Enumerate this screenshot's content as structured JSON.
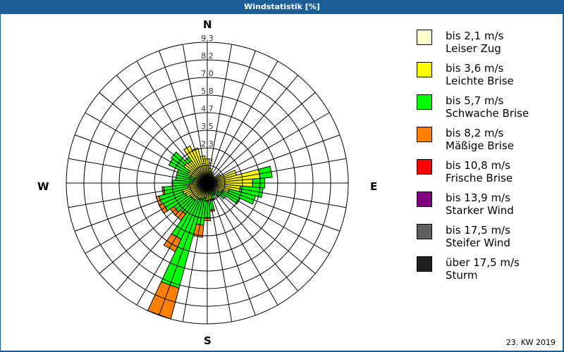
{
  "title": "Windstatistik [%]",
  "footer": "23. KW 2019",
  "directions": {
    "n": "N",
    "e": "E",
    "s": "S",
    "w": "W"
  },
  "legend": [
    {
      "range": "bis 2,1 m/s",
      "name": "Leiser Zug",
      "color": "#ffffcc"
    },
    {
      "range": "bis 3,6 m/s",
      "name": "Leichte Brise",
      "color": "#ffff00"
    },
    {
      "range": "bis 5,7 m/s",
      "name": "Schwache Brise",
      "color": "#00ff00"
    },
    {
      "range": "bis 8,2 m/s",
      "name": "Mäßige Brise",
      "color": "#ff8000"
    },
    {
      "range": "bis 10,8 m/s",
      "name": "Frische Brise",
      "color": "#ff0000"
    },
    {
      "range": "bis 13,9 m/s",
      "name": "Starker Wind",
      "color": "#800080"
    },
    {
      "range": "bis 17,5 m/s",
      "name": "Steifer Wind",
      "color": "#606060"
    },
    {
      "range": "über 17,5 m/s",
      "name": "Sturm",
      "color": "#202020"
    }
  ],
  "chart_data": {
    "type": "wind-rose",
    "title": "Windstatistik [%]",
    "unit": "%",
    "rings": [
      "1,2",
      "2,3",
      "3,5",
      "4,7",
      "5,8",
      "7,0",
      "8,2",
      "9,3"
    ],
    "max_value": 9.3,
    "sector_width_deg": 10,
    "series_names": [
      "bis 2,1 m/s",
      "bis 3,6 m/s",
      "bis 5,7 m/s",
      "bis 8,2 m/s",
      "bis 10,8 m/s",
      "bis 13,9 m/s",
      "bis 17,5 m/s",
      "über 17,5 m/s"
    ],
    "sectors": [
      {
        "dir": 0,
        "values": [
          0.3,
          1.3,
          0,
          0,
          0,
          0,
          0,
          0
        ]
      },
      {
        "dir": 10,
        "values": [
          0.3,
          0.7,
          0,
          0,
          0,
          0,
          0,
          0
        ]
      },
      {
        "dir": 20,
        "values": [
          0.2,
          0.6,
          0,
          0,
          0,
          0,
          0,
          0
        ]
      },
      {
        "dir": 30,
        "values": [
          0.2,
          0.5,
          0,
          0,
          0,
          0,
          0,
          0
        ]
      },
      {
        "dir": 40,
        "values": [
          0.2,
          0.4,
          0,
          0,
          0,
          0,
          0,
          0
        ]
      },
      {
        "dir": 50,
        "values": [
          0.2,
          0.4,
          0,
          0,
          0,
          0,
          0,
          0
        ]
      },
      {
        "dir": 60,
        "values": [
          0.3,
          0.7,
          0,
          0,
          0,
          0,
          0,
          0
        ]
      },
      {
        "dir": 70,
        "values": [
          0.4,
          1.6,
          0,
          0,
          0,
          0,
          0,
          0
        ]
      },
      {
        "dir": 80,
        "values": [
          0.6,
          2.9,
          0.8,
          0,
          0,
          0,
          0,
          0
        ]
      },
      {
        "dir": 90,
        "values": [
          0.5,
          2.5,
          0.8,
          0,
          0,
          0,
          0,
          0
        ]
      },
      {
        "dir": 100,
        "values": [
          0.4,
          1.8,
          1.5,
          0,
          0,
          0,
          0,
          0
        ]
      },
      {
        "dir": 110,
        "values": [
          0.3,
          1.2,
          1.8,
          0,
          0,
          0,
          0,
          0
        ]
      },
      {
        "dir": 120,
        "values": [
          0.3,
          0.8,
          1.3,
          0,
          0,
          0,
          0,
          0
        ]
      },
      {
        "dir": 130,
        "values": [
          0.3,
          0.6,
          0.6,
          0,
          0,
          0,
          0,
          0
        ]
      },
      {
        "dir": 140,
        "values": [
          0.2,
          0.5,
          0.4,
          0,
          0,
          0,
          0,
          0
        ]
      },
      {
        "dir": 150,
        "values": [
          0.2,
          0.4,
          0.3,
          0,
          0,
          0,
          0,
          0
        ]
      },
      {
        "dir": 160,
        "values": [
          0.2,
          0.5,
          0.4,
          0.1,
          0,
          0,
          0,
          0
        ]
      },
      {
        "dir": 170,
        "values": [
          0.2,
          0.9,
          0.7,
          0.1,
          0,
          0,
          0,
          0
        ]
      },
      {
        "dir": 180,
        "values": [
          0.2,
          1.0,
          1.1,
          0.2,
          0,
          0,
          0,
          0
        ]
      },
      {
        "dir": 190,
        "values": [
          0.2,
          0.8,
          1.8,
          0.8,
          0,
          0,
          0,
          0
        ]
      },
      {
        "dir": 200,
        "values": [
          0.2,
          0.9,
          6.1,
          2.1,
          0,
          0,
          0,
          0
        ]
      },
      {
        "dir": 210,
        "values": [
          0.2,
          1.0,
          2.9,
          0.9,
          0,
          0,
          0,
          0
        ]
      },
      {
        "dir": 220,
        "values": [
          0.2,
          1.2,
          1.1,
          0.5,
          0,
          0,
          0,
          0
        ]
      },
      {
        "dir": 230,
        "values": [
          0.2,
          1.2,
          1.3,
          0.3,
          0,
          0,
          0,
          0
        ]
      },
      {
        "dir": 240,
        "values": [
          0.2,
          1.4,
          1.6,
          0.3,
          0,
          0,
          0,
          0
        ]
      },
      {
        "dir": 250,
        "values": [
          0.2,
          1.5,
          1.6,
          0.2,
          0,
          0,
          0,
          0
        ]
      },
      {
        "dir": 260,
        "values": [
          0.2,
          1.1,
          1.6,
          0.1,
          0,
          0,
          0,
          0
        ]
      },
      {
        "dir": 270,
        "values": [
          0.2,
          0.8,
          1.3,
          0,
          0,
          0,
          0,
          0
        ]
      },
      {
        "dir": 280,
        "values": [
          0.2,
          0.7,
          1.2,
          0,
          0,
          0,
          0,
          0
        ]
      },
      {
        "dir": 290,
        "values": [
          0.2,
          0.6,
          1.3,
          0,
          0,
          0,
          0,
          0
        ]
      },
      {
        "dir": 300,
        "values": [
          0.2,
          1.2,
          1.4,
          0,
          0,
          0,
          0,
          0
        ]
      },
      {
        "dir": 310,
        "values": [
          0.2,
          1.7,
          1.0,
          0,
          0,
          0,
          0,
          0
        ]
      },
      {
        "dir": 320,
        "values": [
          0.2,
          1.6,
          0.3,
          0,
          0,
          0,
          0,
          0
        ]
      },
      {
        "dir": 330,
        "values": [
          0.2,
          2.5,
          0,
          0,
          0,
          0,
          0,
          0
        ]
      },
      {
        "dir": 340,
        "values": [
          0.3,
          2.1,
          0,
          0,
          0,
          0,
          0,
          0
        ]
      },
      {
        "dir": 350,
        "values": [
          0.3,
          1.5,
          0,
          0,
          0,
          0,
          0,
          0
        ]
      }
    ],
    "legend_position": "right",
    "grid": true
  }
}
